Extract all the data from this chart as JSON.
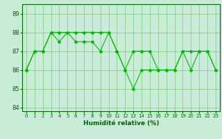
{
  "x": [
    0,
    1,
    2,
    3,
    4,
    5,
    6,
    7,
    8,
    9,
    10,
    11,
    12,
    13,
    14,
    15,
    16,
    17,
    18,
    19,
    20,
    21,
    22,
    23
  ],
  "line1": [
    86,
    87,
    87,
    88,
    88,
    88,
    88,
    88,
    88,
    88,
    88,
    87,
    86,
    87,
    87,
    87,
    86,
    86,
    86,
    87,
    87,
    87,
    87,
    86
  ],
  "line2": [
    86,
    87,
    87,
    88,
    87.5,
    88,
    87.5,
    87.5,
    87.5,
    87,
    88,
    87,
    86,
    85,
    86,
    86,
    86,
    86,
    86,
    87,
    86,
    87,
    87,
    86
  ],
  "line_color": "#00bb00",
  "bg_color": "#c8ecd8",
  "grid_color": "#88cc88",
  "xlabel": "Humidité relative (%)",
  "ylim": [
    83.8,
    89.5
  ],
  "xlim": [
    -0.5,
    23.5
  ],
  "yticks": [
    84,
    85,
    86,
    87,
    88,
    89
  ],
  "xticks": [
    0,
    1,
    2,
    3,
    4,
    5,
    6,
    7,
    8,
    9,
    10,
    11,
    12,
    13,
    14,
    15,
    16,
    17,
    18,
    19,
    20,
    21,
    22,
    23
  ]
}
